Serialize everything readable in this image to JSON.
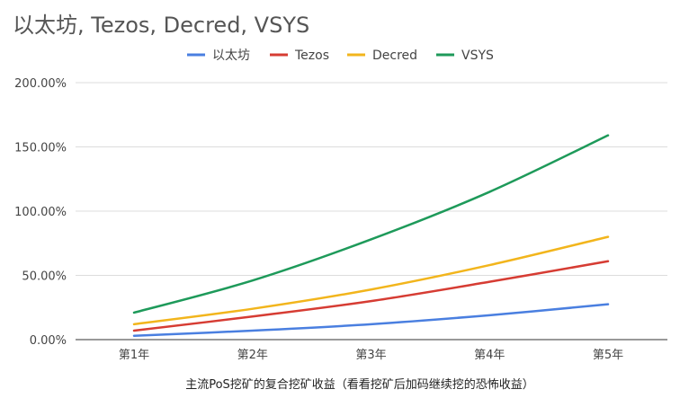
{
  "chart_data": {
    "type": "line",
    "title": "以太坊, Tezos, Decred, VSYS",
    "xlabel": "主流PoS挖矿的复合挖矿收益（看看挖矿后加码继续挖的恐怖收益）",
    "ylabel": "",
    "categories": [
      "第1年",
      "第2年",
      "第3年",
      "第4年",
      "第5年"
    ],
    "ylim": [
      0,
      200
    ],
    "yticks": [
      0,
      50,
      100,
      150,
      200
    ],
    "ytick_labels": [
      "0.00%",
      "50.00%",
      "100.00%",
      "150.00%",
      "200.00%"
    ],
    "grid": true,
    "legend_position": "top",
    "series": [
      {
        "name": "以太坊",
        "color": "#4a7fe0",
        "values": [
          3,
          7,
          12,
          19,
          27.5
        ]
      },
      {
        "name": "Tezos",
        "color": "#d63c33",
        "values": [
          7,
          18,
          30,
          45,
          61
        ]
      },
      {
        "name": "Decred",
        "color": "#f2b51c",
        "values": [
          12,
          24,
          39,
          58,
          80
        ]
      },
      {
        "name": "VSYS",
        "color": "#1e9a5a",
        "values": [
          21,
          46,
          78,
          115,
          159
        ]
      }
    ]
  }
}
